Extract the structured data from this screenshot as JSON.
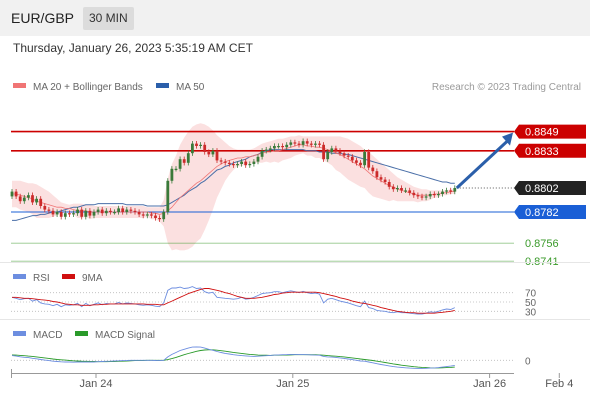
{
  "header": {
    "symbol": "EUR/GBP",
    "timeframe": "30 MIN"
  },
  "datetime": "Thursday, January 26, 2023 5:35:19 AM CET",
  "research_credit": "Research © 2023 Trading Central",
  "colors": {
    "resistance": "#cc0000",
    "support": "#1a5fd6",
    "target": "#3a9a2a",
    "ma20": "#f07575",
    "ma50": "#4a6fa8",
    "bb_fill": "#f9d6d6",
    "candle_up": "#3a7a3a",
    "candle_down": "#cc2a2a",
    "rsi": "#6d8ee0",
    "rsi_ma": "#d01010",
    "macd": "#6d8ee0",
    "macd_signal": "#2a9a2a",
    "arrow": "#2b5faa",
    "current": "#222222"
  },
  "chart_data": [
    {
      "type": "line",
      "panel": "price",
      "legend": [
        {
          "name": "MA 20 + Bollinger Bands",
          "color": "#f07575"
        },
        {
          "name": "MA 50",
          "color": "#2b5faa"
        }
      ],
      "x_ticks": [
        "Jan 24",
        "Jan 25",
        "Jan 26",
        "Feb 4"
      ],
      "x_tick_index": [
        0,
        48,
        96,
        113
      ],
      "ylim": [
        0.8732,
        0.8872
      ],
      "levels": [
        {
          "label": "0.8849",
          "value": 0.8849,
          "kind": "resistance"
        },
        {
          "label": "0.8833",
          "value": 0.8833,
          "kind": "resistance"
        },
        {
          "label": "0.8802",
          "value": 0.8802,
          "kind": "current"
        },
        {
          "label": "0.8782",
          "value": 0.8782,
          "kind": "support"
        },
        {
          "label": "0.8756",
          "value": 0.8756,
          "kind": "target"
        },
        {
          "label": "0.8741",
          "value": 0.8741,
          "kind": "target"
        }
      ],
      "close": [
        0.8799,
        0.8795,
        0.8791,
        0.8794,
        0.8796,
        0.879,
        0.8793,
        0.8787,
        0.8784,
        0.8783,
        0.878,
        0.8782,
        0.8778,
        0.8781,
        0.878,
        0.8781,
        0.8784,
        0.8778,
        0.8783,
        0.8779,
        0.8782,
        0.8784,
        0.8781,
        0.8783,
        0.8782,
        0.8782,
        0.8785,
        0.8782,
        0.8784,
        0.8783,
        0.8782,
        0.878,
        0.8779,
        0.878,
        0.8779,
        0.8777,
        0.8776,
        0.8782,
        0.8808,
        0.8818,
        0.8818,
        0.8826,
        0.8823,
        0.8831,
        0.8839,
        0.8837,
        0.8838,
        0.8832,
        0.883,
        0.8833,
        0.8825,
        0.8824,
        0.8823,
        0.8822,
        0.8821,
        0.8822,
        0.8824,
        0.8821,
        0.8822,
        0.8824,
        0.8828,
        0.8833,
        0.8834,
        0.8835,
        0.8837,
        0.8837,
        0.8836,
        0.8838,
        0.884,
        0.8839,
        0.8838,
        0.8841,
        0.8839,
        0.8838,
        0.8839,
        0.8838,
        0.8826,
        0.8832,
        0.8835,
        0.8833,
        0.8831,
        0.8829,
        0.8828,
        0.8825,
        0.8823,
        0.8821,
        0.8832,
        0.8819,
        0.8816,
        0.8811,
        0.8809,
        0.8807,
        0.8803,
        0.8801,
        0.8802,
        0.88,
        0.88,
        0.8798,
        0.8796,
        0.8795,
        0.8794,
        0.8795,
        0.8797,
        0.8796,
        0.8797,
        0.8799,
        0.88,
        0.8799,
        0.8802
      ],
      "ma50": [
        0.8775,
        0.8775,
        0.8776,
        0.8777,
        0.8778,
        0.8779,
        0.8779,
        0.878,
        0.878,
        0.8781,
        0.8782,
        0.8782,
        0.8783,
        0.8784,
        0.8785,
        0.8786,
        0.8786,
        0.8787,
        0.8788,
        0.8788,
        0.8788,
        0.8789,
        0.8789,
        0.8789,
        0.8789,
        0.8789,
        0.8789,
        0.8789,
        0.8788,
        0.8788,
        0.8788,
        0.8788,
        0.8788,
        0.8787,
        0.8787,
        0.8787,
        0.8787,
        0.8787,
        0.8788,
        0.879,
        0.8792,
        0.8794,
        0.8796,
        0.8799,
        0.8801,
        0.8803,
        0.8806,
        0.8808,
        0.8811,
        0.8814,
        0.8817,
        0.8818,
        0.882,
        0.8821,
        0.8823,
        0.8824,
        0.8825,
        0.8826,
        0.8828,
        0.8829,
        0.883,
        0.8832,
        0.8833,
        0.8834,
        0.8834,
        0.8834,
        0.8834,
        0.8834,
        0.8834,
        0.8834,
        0.8834,
        0.8834,
        0.8833,
        0.8833,
        0.8833,
        0.8832,
        0.8832,
        0.8832,
        0.8831,
        0.8831,
        0.8831,
        0.883,
        0.883,
        0.8829,
        0.8828,
        0.8827,
        0.8826,
        0.8825,
        0.8824,
        0.8823,
        0.8822,
        0.8821,
        0.882,
        0.8819,
        0.8818,
        0.8817,
        0.8816,
        0.8815,
        0.8814,
        0.8813,
        0.8812,
        0.8811,
        0.881,
        0.8809,
        0.8808,
        0.8807,
        0.8807,
        0.8806,
        0.8806
      ],
      "ma20": [
        0.8797,
        0.8797,
        0.8796,
        0.8795,
        0.8794,
        0.8793,
        0.8791,
        0.879,
        0.8789,
        0.8788,
        0.8787,
        0.8786,
        0.8786,
        0.8785,
        0.8785,
        0.8784,
        0.8783,
        0.8783,
        0.8783,
        0.8782,
        0.8782,
        0.8782,
        0.8782,
        0.8782,
        0.8782,
        0.8782,
        0.8782,
        0.8782,
        0.8782,
        0.8782,
        0.8782,
        0.8782,
        0.8782,
        0.8782,
        0.8781,
        0.8781,
        0.878,
        0.8781,
        0.8783,
        0.8786,
        0.879,
        0.8794,
        0.8797,
        0.88,
        0.8803,
        0.8806,
        0.8808,
        0.8811,
        0.8814,
        0.8817,
        0.882,
        0.8822,
        0.8824,
        0.8825,
        0.8826,
        0.8827,
        0.8827,
        0.8828,
        0.8828,
        0.8829,
        0.883,
        0.8831,
        0.8832,
        0.8832,
        0.8833,
        0.8833,
        0.8834,
        0.8835,
        0.8836,
        0.8837,
        0.8838,
        0.8838,
        0.8837,
        0.8837,
        0.8836,
        0.8836,
        0.8835,
        0.8834,
        0.8833,
        0.8831,
        0.883,
        0.8828,
        0.8826,
        0.8824,
        0.8822,
        0.882,
        0.8818,
        0.8815,
        0.8812,
        0.881,
        0.8808,
        0.8806,
        0.8804,
        0.8803,
        0.8801,
        0.88,
        0.8799,
        0.8798,
        0.8797,
        0.8796,
        0.8796,
        0.8796,
        0.8796,
        0.8797,
        0.8797,
        0.8798,
        0.8798,
        0.8799,
        0.8799
      ],
      "bb_upper": [
        0.8808,
        0.8808,
        0.8808,
        0.8807,
        0.8806,
        0.8806,
        0.8805,
        0.8803,
        0.8801,
        0.8799,
        0.8796,
        0.8793,
        0.879,
        0.8789,
        0.8788,
        0.8789,
        0.8789,
        0.8789,
        0.8788,
        0.8788,
        0.8787,
        0.8787,
        0.8787,
        0.8787,
        0.8787,
        0.8787,
        0.8787,
        0.8787,
        0.8787,
        0.8787,
        0.8787,
        0.8787,
        0.8787,
        0.8786,
        0.8786,
        0.8786,
        0.8786,
        0.8792,
        0.881,
        0.8822,
        0.8829,
        0.8838,
        0.8844,
        0.8849,
        0.8853,
        0.8855,
        0.8856,
        0.8855,
        0.8853,
        0.885,
        0.8846,
        0.8843,
        0.884,
        0.8837,
        0.8835,
        0.8834,
        0.8834,
        0.8834,
        0.8834,
        0.8835,
        0.8837,
        0.8839,
        0.884,
        0.8841,
        0.8842,
        0.8843,
        0.8843,
        0.8844,
        0.8845,
        0.8845,
        0.8846,
        0.8845,
        0.8845,
        0.8845,
        0.8845,
        0.8845,
        0.8845,
        0.8845,
        0.8845,
        0.8845,
        0.8845,
        0.8844,
        0.8843,
        0.8841,
        0.8839,
        0.8837,
        0.8834,
        0.8832,
        0.8829,
        0.8826,
        0.8823,
        0.882,
        0.8817,
        0.8814,
        0.8811,
        0.8809,
        0.8807,
        0.8805,
        0.8803,
        0.8802,
        0.8801,
        0.8801,
        0.88,
        0.88,
        0.88,
        0.88,
        0.88,
        0.8801,
        0.8801
      ],
      "bb_lower": [
        0.8786,
        0.8786,
        0.8784,
        0.8783,
        0.8782,
        0.878,
        0.8777,
        0.8777,
        0.8777,
        0.8777,
        0.8778,
        0.8779,
        0.8782,
        0.8781,
        0.8782,
        0.878,
        0.8777,
        0.8777,
        0.8778,
        0.8776,
        0.8777,
        0.8777,
        0.8777,
        0.8777,
        0.8777,
        0.8777,
        0.8777,
        0.8777,
        0.8777,
        0.8777,
        0.8777,
        0.8777,
        0.8777,
        0.8778,
        0.8776,
        0.8776,
        0.8774,
        0.877,
        0.8756,
        0.875,
        0.8751,
        0.875,
        0.875,
        0.8751,
        0.8753,
        0.8757,
        0.876,
        0.8767,
        0.8775,
        0.8784,
        0.8794,
        0.8801,
        0.8808,
        0.8813,
        0.8817,
        0.882,
        0.882,
        0.8822,
        0.8822,
        0.8823,
        0.8823,
        0.8823,
        0.8824,
        0.8823,
        0.8824,
        0.8823,
        0.8825,
        0.8826,
        0.8827,
        0.8829,
        0.883,
        0.8831,
        0.8829,
        0.8829,
        0.8827,
        0.8827,
        0.8825,
        0.8823,
        0.8821,
        0.8817,
        0.8815,
        0.8812,
        0.8809,
        0.8807,
        0.8805,
        0.8803,
        0.8802,
        0.8798,
        0.8795,
        0.8794,
        0.8793,
        0.8792,
        0.8791,
        0.8792,
        0.8791,
        0.8791,
        0.8791,
        0.8791,
        0.8791,
        0.879,
        0.8791,
        0.8791,
        0.8792,
        0.8794,
        0.8794,
        0.8796,
        0.8796,
        0.8797,
        0.8797
      ]
    },
    {
      "type": "line",
      "panel": "rsi",
      "legend": [
        {
          "name": "RSI",
          "color": "#6d8ee0"
        },
        {
          "name": "9MA",
          "color": "#d01010"
        }
      ],
      "y_ticks": [
        "70",
        "50",
        "30"
      ],
      "y_tick_values": [
        70,
        50,
        30
      ],
      "ylim": [
        20,
        80
      ],
      "rsi": [
        60,
        58,
        55,
        57,
        58,
        52,
        55,
        48,
        46,
        45,
        42,
        45,
        40,
        44,
        43,
        44,
        47,
        40,
        47,
        42,
        45,
        48,
        44,
        47,
        46,
        46,
        49,
        46,
        48,
        47,
        46,
        44,
        43,
        44,
        43,
        41,
        40,
        48,
        75,
        80,
        80,
        82,
        79,
        80,
        83,
        79,
        80,
        72,
        69,
        71,
        60,
        59,
        58,
        57,
        56,
        57,
        60,
        56,
        57,
        60,
        64,
        68,
        69,
        70,
        72,
        72,
        70,
        72,
        74,
        72,
        70,
        73,
        70,
        68,
        69,
        67,
        48,
        56,
        58,
        55,
        52,
        50,
        48,
        45,
        42,
        40,
        52,
        38,
        36,
        32,
        31,
        30,
        28,
        27,
        29,
        27,
        27,
        26,
        25,
        24,
        24,
        26,
        29,
        28,
        30,
        33,
        35,
        34,
        38
      ],
      "rsi_ma": [
        60,
        60,
        59,
        58,
        58,
        57,
        56,
        55,
        54,
        53,
        51,
        50,
        48,
        46,
        45,
        44,
        44,
        43,
        43,
        43,
        44,
        44,
        45,
        45,
        46,
        46,
        46,
        46,
        46,
        46,
        46,
        46,
        46,
        45,
        45,
        45,
        44,
        44,
        48,
        52,
        56,
        60,
        64,
        68,
        71,
        74,
        77,
        79,
        79,
        77,
        75,
        73,
        70,
        68,
        65,
        62,
        60,
        58,
        58,
        58,
        59,
        60,
        62,
        64,
        66,
        67,
        69,
        70,
        71,
        71,
        71,
        71,
        71,
        71,
        71,
        70,
        68,
        66,
        64,
        62,
        59,
        57,
        55,
        52,
        50,
        48,
        47,
        45,
        43,
        41,
        38,
        36,
        34,
        32,
        30,
        29,
        28,
        27,
        27,
        26,
        26,
        26,
        26,
        26,
        27,
        28,
        29,
        30,
        32
      ]
    },
    {
      "type": "line",
      "panel": "macd",
      "legend": [
        {
          "name": "MACD",
          "color": "#6d8ee0"
        },
        {
          "name": "MACD Signal",
          "color": "#2a9a2a"
        }
      ],
      "y_ticks": [
        "0"
      ],
      "y_tick_values": [
        0
      ],
      "ylim": [
        -7.5,
        12
      ],
      "macd": [
        2.8,
        2.5,
        2.1,
        1.8,
        1.6,
        1.2,
        0.9,
        0.5,
        0.1,
        -0.2,
        -0.5,
        -0.7,
        -0.9,
        -1.0,
        -1.0,
        -1.1,
        -1.0,
        -1.0,
        -1.0,
        -1.0,
        -1.0,
        -0.8,
        -0.7,
        -0.6,
        -0.5,
        -0.4,
        -0.3,
        -0.2,
        -0.1,
        0.0,
        0.0,
        0.0,
        0.0,
        0.0,
        0.0,
        -0.1,
        -0.2,
        0.0,
        2.0,
        3.5,
        4.6,
        5.8,
        6.5,
        7.2,
        7.8,
        7.9,
        7.8,
        7.2,
        6.5,
        5.9,
        5.2,
        4.6,
        4.1,
        3.7,
        3.3,
        3.0,
        2.8,
        2.6,
        2.4,
        2.3,
        2.4,
        2.6,
        2.7,
        2.9,
        3.1,
        3.2,
        3.3,
        3.4,
        3.5,
        3.5,
        3.4,
        3.4,
        3.3,
        3.2,
        3.1,
        3.0,
        2.3,
        2.0,
        1.9,
        1.7,
        1.4,
        1.1,
        0.8,
        0.4,
        0.0,
        -0.4,
        -0.5,
        -1.0,
        -1.5,
        -2.0,
        -2.5,
        -2.9,
        -3.3,
        -3.7,
        -4.0,
        -4.2,
        -4.4,
        -4.6,
        -4.7,
        -4.8,
        -4.8,
        -4.7,
        -4.6,
        -4.5,
        -4.3,
        -4.0,
        -3.7,
        -3.4,
        -3.0
      ],
      "macd_signal": [
        3.2,
        3.1,
        2.9,
        2.7,
        2.5,
        2.3,
        2.0,
        1.7,
        1.4,
        1.1,
        0.8,
        0.5,
        0.3,
        0.1,
        -0.1,
        -0.3,
        -0.4,
        -0.5,
        -0.6,
        -0.7,
        -0.7,
        -0.8,
        -0.8,
        -0.8,
        -0.7,
        -0.7,
        -0.6,
        -0.5,
        -0.4,
        -0.3,
        -0.2,
        -0.1,
        -0.1,
        0.0,
        0.0,
        0.0,
        0.0,
        0.0,
        0.4,
        1.0,
        1.7,
        2.5,
        3.3,
        4.0,
        4.7,
        5.3,
        5.8,
        6.1,
        6.2,
        6.2,
        6.0,
        5.7,
        5.4,
        5.0,
        4.7,
        4.4,
        4.1,
        3.8,
        3.5,
        3.3,
        3.1,
        3.0,
        3.0,
        2.9,
        3.0,
        3.0,
        3.1,
        3.1,
        3.2,
        3.3,
        3.3,
        3.3,
        3.3,
        3.3,
        3.3,
        3.2,
        3.0,
        2.8,
        2.6,
        2.4,
        2.2,
        2.0,
        1.7,
        1.4,
        1.1,
        0.8,
        0.5,
        0.2,
        -0.1,
        -0.5,
        -0.9,
        -1.3,
        -1.7,
        -2.1,
        -2.5,
        -2.9,
        -3.2,
        -3.5,
        -3.8,
        -4.0,
        -4.2,
        -4.3,
        -4.4,
        -4.5,
        -4.5,
        -4.4,
        -4.3,
        -4.2,
        -4.0
      ]
    }
  ]
}
